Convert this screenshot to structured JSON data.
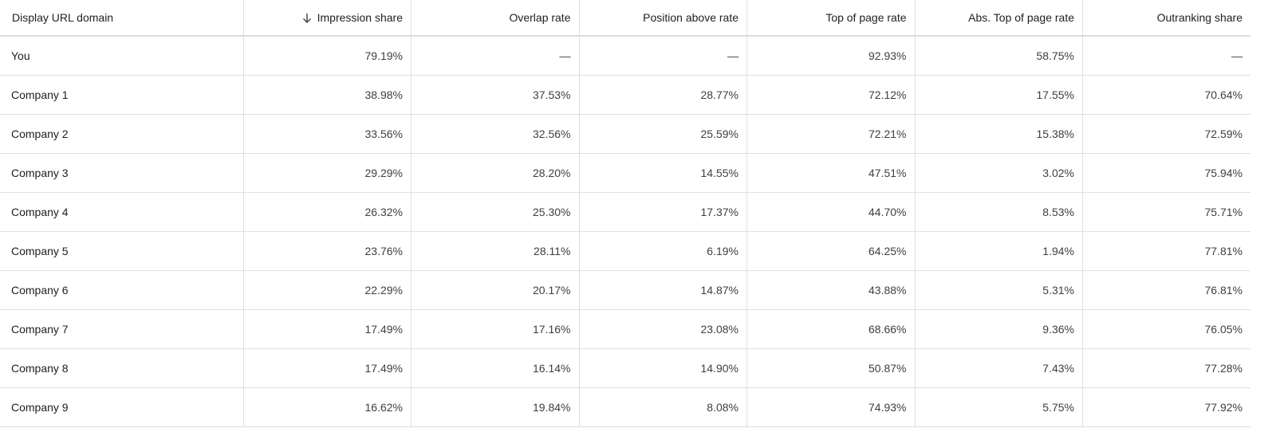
{
  "table": {
    "header": [
      "Display URL domain",
      "Impression share",
      "Overlap rate",
      "Position above rate",
      "Top of page rate",
      "Abs. Top of page rate",
      "Outranking share"
    ],
    "rows": [
      [
        "You",
        "79.19%",
        "—",
        "—",
        "92.93%",
        "58.75%",
        "—"
      ],
      [
        "Company 1",
        "38.98%",
        "37.53%",
        "28.77%",
        "72.12%",
        "17.55%",
        "70.64%"
      ],
      [
        "Company 2",
        "33.56%",
        "32.56%",
        "25.59%",
        "72.21%",
        "15.38%",
        "72.59%"
      ],
      [
        "Company 3",
        "29.29%",
        "28.20%",
        "14.55%",
        "47.51%",
        "3.02%",
        "75.94%"
      ],
      [
        "Company 4",
        "26.32%",
        "25.30%",
        "17.37%",
        "44.70%",
        "8.53%",
        "75.71%"
      ],
      [
        "Company 5",
        "23.76%",
        "28.11%",
        "6.19%",
        "64.25%",
        "1.94%",
        "77.81%"
      ],
      [
        "Company 6",
        "22.29%",
        "20.17%",
        "14.87%",
        "43.88%",
        "5.31%",
        "76.81%"
      ],
      [
        "Company 7",
        "17.49%",
        "17.16%",
        "23.08%",
        "68.66%",
        "9.36%",
        "76.05%"
      ],
      [
        "Company 8",
        "17.49%",
        "16.14%",
        "14.90%",
        "50.87%",
        "7.43%",
        "77.28%"
      ],
      [
        "Company 9",
        "16.62%",
        "19.84%",
        "8.08%",
        "74.93%",
        "5.75%",
        "77.92%"
      ]
    ]
  }
}
